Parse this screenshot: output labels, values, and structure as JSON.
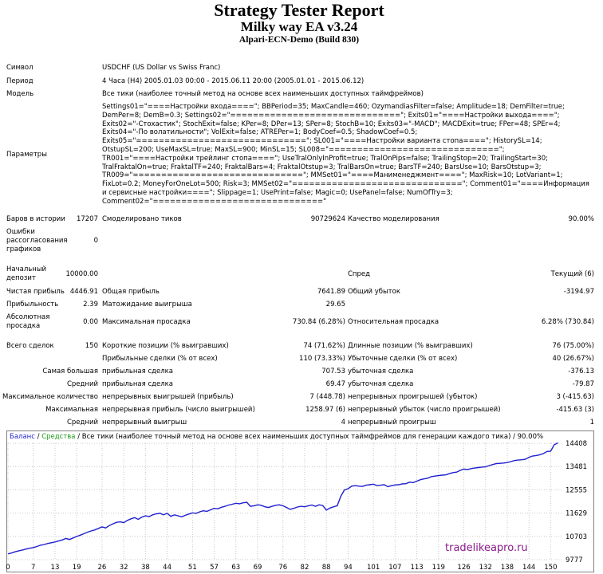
{
  "report": {
    "title": "Strategy Tester Report",
    "ea_name": "Milky way EA v3.24",
    "server": "Alpari-ECN-Demo (Build 830)"
  },
  "info": {
    "symbol_label": "Символ",
    "symbol_value": "USDCHF (US Dollar vs Swiss Franc)",
    "period_label": "Период",
    "period_value": "4 Часа (H4) 2005.01.03 00:00 - 2015.06.11 20:00 (2005.01.01 - 2015.06.12)",
    "model_label": "Модель",
    "model_value": "Все тики (наиболее точный метод на основе всех наименьших доступных таймфреймов)",
    "params_label": "Параметры",
    "params_value": "Settings01=\"====Настройки входа====\"; BBPeriod=35; MaxCandle=460; OzymandiasFilter=false; Amplitude=18; DemFilter=true; DemPer=8; DemB=0.3; Settings02=\"==============================\"; Exits01=\"====Настройки выхода====\"; Exits02=\"-Стохастик\"; StochExit=false; KPer=8; DPer=13; SPer=8; StochB=10; Exits03=\"-MACD\"; MACDExit=true; FPer=48; SPEr=4; Exits04=\"-По волатильности\"; VolExit=false; ATREPer=1; BodyCoef=0.5; ShadowCoef=0.5; Exits05=\"==============================\"; SL001=\"====Настройки варианта стопа====\"; HistorySL=14; OtstupSL=200; UseMaxSL=true; MaxSL=900; MinSL=15; SL008=\"==============================\"; TR001=\"====Настройки трейлинг стопа====\"; UseTralOnlyInProfit=true; TralOnPips=false; TrailingStop=20; TrailingStart=30; TralFraktalOn=true; FraktalTF=240; FraktalBars=4; FraktalOtstup=3; TralBarsOn=true; BarsTF=240; BarsUse=10; BarsOtstup=3; TR009=\"==============================\"; MMSet01=\"====Манименеджмент====\"; MaxRisk=10; LotVariant=1; FixLot=0.2; MoneyForOneLot=500; Risk=3; MMSet02=\"==============================\"; Comment01=\"====Информация и сервисные настройки====\"; Slippage=1; UsePrint=false; Magic=0; UsePanel=false; NumOfTry=3; Comment02=\"==============================\""
  },
  "stats": {
    "bars_label": "Баров в истории",
    "bars_value": "17207",
    "ticks_label": "Смоделировано тиков",
    "ticks_value": "90729624",
    "quality_label": "Качество моделирования",
    "quality_value": "90.00%",
    "errors_label": "Ошибки рассогласования графиков",
    "errors_value": "0",
    "deposit_label": "Начальный депозит",
    "deposit_value": "10000.00",
    "spread_label": "Спред",
    "spread_value": "Текущий (6)",
    "net_label": "Чистая прибыль",
    "net_value": "4446.91",
    "gross_profit_label": "Общая прибыль",
    "gross_profit_value": "7641.89",
    "gross_loss_label": "Общий убыток",
    "gross_loss_value": "-3194.97",
    "pf_label": "Прибыльность",
    "pf_value": "2.39",
    "expected_label": "Матожидание выигрыша",
    "expected_value": "29.65",
    "abs_dd_label": "Абсолютная просадка",
    "abs_dd_value": "0.00",
    "max_dd_label": "Максимальная просадка",
    "max_dd_value": "730.84 (6.28%)",
    "rel_dd_label": "Относительная просадка",
    "rel_dd_value": "6.28% (730.84)",
    "total_label": "Всего сделок",
    "total_value": "150",
    "short_label": "Короткие позиции (% выигравших)",
    "short_value": "74 (71.62%)",
    "long_label": "Длинные позиции (% выигравших)",
    "long_value": "76 (75.00%)",
    "profit_trades_label": "Прибыльные сделки (% от всех)",
    "profit_trades_value": "110 (73.33%)",
    "loss_trades_label": "Убыточные сделки (% от всех)",
    "loss_trades_value": "40 (26.67%)",
    "largest_label": "Самая большая",
    "largest_profit_label": "прибыльная сделка",
    "largest_profit_value": "707.53",
    "largest_loss_label": "убыточная сделка",
    "largest_loss_value": "-376.13",
    "avg_label": "Средний",
    "avg_profit_label": "прибыльная сделка",
    "avg_profit_value": "69.47",
    "avg_loss_label": "убыточная сделка",
    "avg_loss_value": "-79.87",
    "max_count_label": "Максимальное количество",
    "max_cons_wins_label": "непрерывных выигрышей (прибыль)",
    "max_cons_wins_value": "7 (448.78)",
    "max_cons_losses_label": "непрерывных проигрышей (убыток)",
    "max_cons_losses_value": "3 (-415.63)",
    "maximal_label": "Максимальная",
    "max_cons_profit_label": "непрерывная прибыль (число выигрышей)",
    "max_cons_profit_value": "1258.97 (6)",
    "max_cons_loss_label": "непрерывный убыток (число проигрышей)",
    "max_cons_loss_value": "-415.63 (3)",
    "avg_cons_label": "Средний",
    "avg_cons_wins_label": "непрерывный выигрыш",
    "avg_cons_wins_value": "4",
    "avg_cons_losses_label": "непрерывный проигрыш",
    "avg_cons_losses_value": "1"
  },
  "chart": {
    "legend_balance": "Баланс",
    "legend_separator": "/",
    "legend_equity": "Средства",
    "legend_rest": "/ Все тики (наиболее точный метод на основе всех наименьших доступных таймфреймов для генерации каждого тика) / 90.00%",
    "balance_color": "#1f1fd0",
    "equity_color": "#1a9a1a",
    "watermark": "tradelikeapro.ru"
  },
  "chart_data": {
    "type": "line",
    "x_ticks": [
      0,
      7,
      13,
      19,
      26,
      32,
      38,
      44,
      51,
      57,
      63,
      69,
      76,
      82,
      88,
      94,
      101,
      107,
      113,
      119,
      126,
      132,
      138,
      144,
      150
    ],
    "y_ticks": [
      "9777",
      "10703",
      "11629",
      "12555",
      "13481",
      "14408"
    ],
    "xlim": [
      0,
      153
    ],
    "ylim": [
      9777,
      14408
    ],
    "series": [
      {
        "values": [
          [
            0,
            10010
          ],
          [
            1,
            10040
          ],
          [
            2,
            10090
          ],
          [
            3,
            10130
          ],
          [
            4,
            10160
          ],
          [
            5,
            10200
          ],
          [
            6,
            10230
          ],
          [
            7,
            10260
          ],
          [
            8,
            10300
          ],
          [
            9,
            10350
          ],
          [
            10,
            10380
          ],
          [
            11,
            10420
          ],
          [
            12,
            10450
          ],
          [
            13,
            10480
          ],
          [
            14,
            10520
          ],
          [
            15,
            10560
          ],
          [
            16,
            10620
          ],
          [
            17,
            10580
          ],
          [
            18,
            10640
          ],
          [
            19,
            10700
          ],
          [
            20,
            10750
          ],
          [
            21,
            10810
          ],
          [
            22,
            10870
          ],
          [
            23,
            10920
          ],
          [
            24,
            10960
          ],
          [
            25,
            11020
          ],
          [
            26,
            11080
          ],
          [
            27,
            11040
          ],
          [
            28,
            11130
          ],
          [
            29,
            11200
          ],
          [
            30,
            11260
          ],
          [
            31,
            11280
          ],
          [
            32,
            11250
          ],
          [
            33,
            11340
          ],
          [
            34,
            11400
          ],
          [
            35,
            11450
          ],
          [
            36,
            11380
          ],
          [
            37,
            11470
          ],
          [
            38,
            11520
          ],
          [
            39,
            11490
          ],
          [
            40,
            11560
          ],
          [
            41,
            11600
          ],
          [
            42,
            11620
          ],
          [
            43,
            11560
          ],
          [
            44,
            11620
          ],
          [
            45,
            11500
          ],
          [
            46,
            11560
          ],
          [
            47,
            11520
          ],
          [
            48,
            11480
          ],
          [
            49,
            11540
          ],
          [
            50,
            11590
          ],
          [
            51,
            11640
          ],
          [
            52,
            11620
          ],
          [
            53,
            11680
          ],
          [
            54,
            11720
          ],
          [
            55,
            11700
          ],
          [
            56,
            11760
          ],
          [
            57,
            11820
          ],
          [
            58,
            11800
          ],
          [
            59,
            11860
          ],
          [
            60,
            11900
          ],
          [
            61,
            11950
          ],
          [
            62,
            11980
          ],
          [
            63,
            12020
          ],
          [
            64,
            12000
          ],
          [
            65,
            12040
          ],
          [
            66,
            12060
          ],
          [
            67,
            11900
          ],
          [
            68,
            11920
          ],
          [
            69,
            11960
          ],
          [
            70,
            11940
          ],
          [
            71,
            11880
          ],
          [
            72,
            11850
          ],
          [
            73,
            11900
          ],
          [
            74,
            11940
          ],
          [
            75,
            11960
          ],
          [
            76,
            11920
          ],
          [
            77,
            11850
          ],
          [
            78,
            11780
          ],
          [
            79,
            11820
          ],
          [
            80,
            11870
          ],
          [
            81,
            11900
          ],
          [
            82,
            11880
          ],
          [
            83,
            11920
          ],
          [
            84,
            11950
          ],
          [
            85,
            11900
          ],
          [
            86,
            11960
          ],
          [
            87,
            11930
          ],
          [
            88,
            11750
          ],
          [
            89,
            11830
          ],
          [
            90,
            11880
          ],
          [
            91,
            11920
          ],
          [
            92,
            12300
          ],
          [
            93,
            12550
          ],
          [
            94,
            12600
          ],
          [
            95,
            12700
          ],
          [
            96,
            12720
          ],
          [
            97,
            12700
          ],
          [
            98,
            12690
          ],
          [
            99,
            12740
          ],
          [
            100,
            12760
          ],
          [
            101,
            12780
          ],
          [
            102,
            12720
          ],
          [
            103,
            12740
          ],
          [
            104,
            12760
          ],
          [
            105,
            12680
          ],
          [
            106,
            12720
          ],
          [
            107,
            12750
          ],
          [
            108,
            12760
          ],
          [
            109,
            12790
          ],
          [
            110,
            12800
          ],
          [
            111,
            12860
          ],
          [
            112,
            12840
          ],
          [
            113,
            12900
          ],
          [
            114,
            12960
          ],
          [
            115,
            12990
          ],
          [
            116,
            13020
          ],
          [
            117,
            13080
          ],
          [
            118,
            13100
          ],
          [
            119,
            13120
          ],
          [
            120,
            13140
          ],
          [
            121,
            13150
          ],
          [
            122,
            13200
          ],
          [
            123,
            13240
          ],
          [
            124,
            13260
          ],
          [
            125,
            13330
          ],
          [
            126,
            13380
          ],
          [
            127,
            13360
          ],
          [
            128,
            13400
          ],
          [
            129,
            13420
          ],
          [
            130,
            13440
          ],
          [
            131,
            13460
          ],
          [
            132,
            13470
          ],
          [
            133,
            13520
          ],
          [
            134,
            13560
          ],
          [
            135,
            13600
          ],
          [
            136,
            13610
          ],
          [
            137,
            13620
          ],
          [
            138,
            13640
          ],
          [
            139,
            13680
          ],
          [
            140,
            13720
          ],
          [
            141,
            13740
          ],
          [
            142,
            13750
          ],
          [
            143,
            13770
          ],
          [
            144,
            13850
          ],
          [
            145,
            13900
          ],
          [
            146,
            13920
          ],
          [
            147,
            13950
          ],
          [
            148,
            14000
          ],
          [
            149,
            14080
          ],
          [
            150,
            14090
          ],
          [
            151,
            14350
          ],
          [
            152,
            14420
          ]
        ]
      }
    ]
  }
}
